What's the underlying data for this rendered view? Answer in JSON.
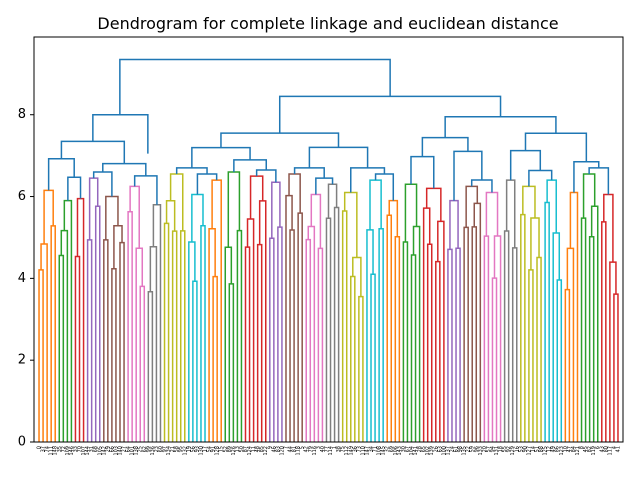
{
  "chart_data": {
    "type": "dendrogram",
    "title": "Dendrogram for complete linkage and euclidean distance",
    "xlabel": "",
    "ylabel": "",
    "ylim": [
      0,
      9.9
    ],
    "yticks": [
      0,
      2,
      4,
      6,
      8
    ],
    "grid": false,
    "legend": "none",
    "leaf_count": 144,
    "colors": {
      "link": "#1f77b4",
      "clusters": [
        "#ff7f0e",
        "#2ca02c",
        "#d62728",
        "#9467bd",
        "#8c564b",
        "#e377c2",
        "#7f7f7f",
        "#bcbd22",
        "#17becf"
      ],
      "axis": "#000000"
    },
    "top_merges": [
      {
        "name": "root",
        "height": 9.35
      },
      {
        "name": "left-group",
        "height": 8.0
      },
      {
        "name": "right-group",
        "height": 8.45
      },
      {
        "name": "right-inner",
        "height": 7.95
      },
      {
        "name": "left-inner",
        "height": 7.35
      },
      {
        "name": "middle-block",
        "height": 7.55
      }
    ],
    "cluster_heights": [
      6.15,
      5.9,
      5.95,
      6.45,
      6.0,
      6.25,
      5.8,
      6.55,
      6.05,
      6.4,
      6.6,
      6.5,
      6.35,
      6.55,
      6.05,
      6.3,
      6.1,
      6.4,
      5.9,
      6.3,
      6.2,
      5.9,
      6.25,
      6.1,
      6.4,
      6.25,
      6.4,
      6.1,
      6.55,
      6.05
    ]
  }
}
